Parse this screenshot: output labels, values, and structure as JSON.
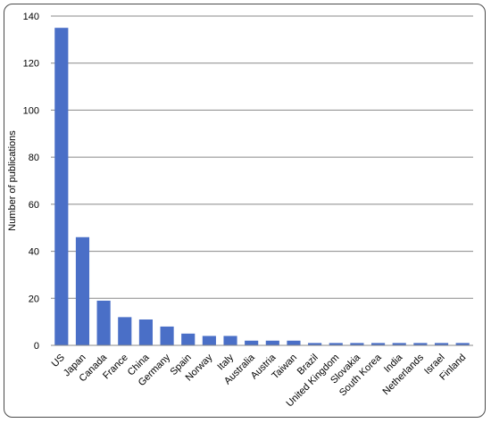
{
  "chart_data": {
    "type": "bar",
    "title": "",
    "xlabel": "",
    "ylabel": "Number of publications",
    "ylim": [
      0,
      140
    ],
    "yticks": [
      0,
      20,
      40,
      60,
      80,
      100,
      120,
      140
    ],
    "grid": true,
    "legend": "none",
    "bar_color": "#4a6fc7",
    "grid_color": "#888888",
    "categories": [
      "US",
      "Japan",
      "Canada",
      "France",
      "China",
      "Germany",
      "Spain",
      "Norway",
      "Italy",
      "Australia",
      "Austria",
      "Taiwan",
      "Brazil",
      "United Kingdom",
      "Slovakia",
      "South Korea",
      "India",
      "Netherlands",
      "Israel",
      "Finland"
    ],
    "values": [
      135,
      46,
      19,
      12,
      11,
      8,
      5,
      4,
      4,
      2,
      2,
      2,
      1,
      1,
      1,
      1,
      1,
      1,
      1,
      1
    ]
  }
}
